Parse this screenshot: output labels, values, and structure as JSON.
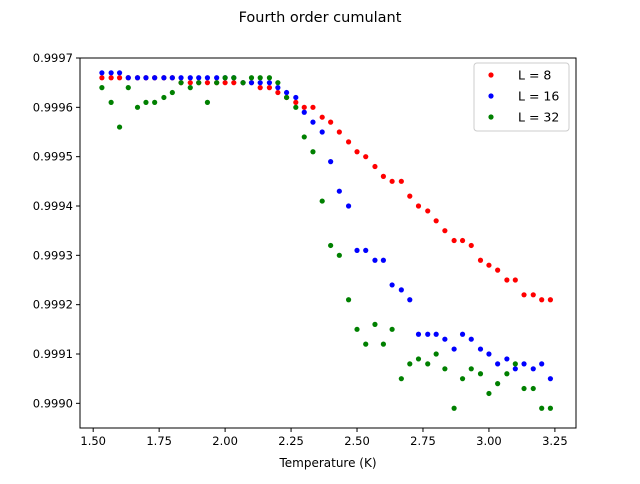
{
  "chart_data": {
    "type": "scatter",
    "title": "Fourth order cumulant",
    "xlabel": "Temperature (K)",
    "ylabel": "",
    "xlim": [
      1.45,
      3.33
    ],
    "ylim": [
      0.99895,
      0.9997
    ],
    "xticks": [
      1.5,
      1.75,
      2.0,
      2.25,
      2.5,
      2.75,
      3.0,
      3.25
    ],
    "xtick_labels": [
      "1.50",
      "1.75",
      "2.00",
      "2.25",
      "2.50",
      "2.75",
      "3.00",
      "3.25"
    ],
    "yticks": [
      0.999,
      0.9991,
      0.9992,
      0.9993,
      0.9994,
      0.9995,
      0.9996,
      0.9997
    ],
    "ytick_labels": [
      "0.9990",
      "0.9991",
      "0.9992",
      "0.9993",
      "0.9994",
      "0.9995",
      "0.9996",
      "0.9997"
    ],
    "grid": false,
    "legend_position": "top-right",
    "series": [
      {
        "name": "L = 8",
        "color": "#ff0000",
        "points": [
          [
            1.533,
            0.99966
          ],
          [
            1.568,
            0.99966
          ],
          [
            1.6,
            0.99966
          ],
          [
            1.633,
            0.99966
          ],
          [
            1.668,
            0.99966
          ],
          [
            1.7,
            0.99966
          ],
          [
            1.733,
            0.99966
          ],
          [
            1.768,
            0.99966
          ],
          [
            1.8,
            0.99966
          ],
          [
            1.833,
            0.99965
          ],
          [
            1.868,
            0.99965
          ],
          [
            1.9,
            0.99965
          ],
          [
            1.933,
            0.99965
          ],
          [
            1.968,
            0.99965
          ],
          [
            2.0,
            0.99965
          ],
          [
            2.033,
            0.99965
          ],
          [
            2.068,
            0.99965
          ],
          [
            2.1,
            0.99965
          ],
          [
            2.133,
            0.99964
          ],
          [
            2.168,
            0.99964
          ],
          [
            2.2,
            0.99963
          ],
          [
            2.233,
            0.99962
          ],
          [
            2.268,
            0.99961
          ],
          [
            2.3,
            0.9996
          ],
          [
            2.333,
            0.9996
          ],
          [
            2.368,
            0.99958
          ],
          [
            2.4,
            0.99957
          ],
          [
            2.433,
            0.99955
          ],
          [
            2.468,
            0.99953
          ],
          [
            2.5,
            0.99951
          ],
          [
            2.533,
            0.9995
          ],
          [
            2.568,
            0.99948
          ],
          [
            2.6,
            0.99946
          ],
          [
            2.633,
            0.99945
          ],
          [
            2.668,
            0.99945
          ],
          [
            2.7,
            0.99942
          ],
          [
            2.733,
            0.9994
          ],
          [
            2.768,
            0.99939
          ],
          [
            2.8,
            0.99937
          ],
          [
            2.833,
            0.99935
          ],
          [
            2.868,
            0.99933
          ],
          [
            2.9,
            0.99933
          ],
          [
            2.933,
            0.99932
          ],
          [
            2.968,
            0.99929
          ],
          [
            3.0,
            0.99928
          ],
          [
            3.033,
            0.99927
          ],
          [
            3.068,
            0.99925
          ],
          [
            3.1,
            0.99925
          ],
          [
            3.133,
            0.99922
          ],
          [
            3.168,
            0.99922
          ],
          [
            3.2,
            0.99921
          ],
          [
            3.233,
            0.99921
          ]
        ]
      },
      {
        "name": "L = 16",
        "color": "#0000ff",
        "points": [
          [
            1.533,
            0.99967
          ],
          [
            1.568,
            0.99967
          ],
          [
            1.6,
            0.99967
          ],
          [
            1.633,
            0.99966
          ],
          [
            1.668,
            0.99966
          ],
          [
            1.7,
            0.99966
          ],
          [
            1.733,
            0.99966
          ],
          [
            1.768,
            0.99966
          ],
          [
            1.8,
            0.99966
          ],
          [
            1.833,
            0.99966
          ],
          [
            1.868,
            0.99966
          ],
          [
            1.9,
            0.99966
          ],
          [
            1.933,
            0.99966
          ],
          [
            1.968,
            0.99966
          ],
          [
            2.0,
            0.99966
          ],
          [
            2.033,
            0.99966
          ],
          [
            2.068,
            0.99965
          ],
          [
            2.1,
            0.99965
          ],
          [
            2.133,
            0.99965
          ],
          [
            2.168,
            0.99965
          ],
          [
            2.2,
            0.99964
          ],
          [
            2.233,
            0.99963
          ],
          [
            2.268,
            0.99962
          ],
          [
            2.3,
            0.99959
          ],
          [
            2.333,
            0.99957
          ],
          [
            2.368,
            0.99955
          ],
          [
            2.4,
            0.99949
          ],
          [
            2.433,
            0.99943
          ],
          [
            2.468,
            0.9994
          ],
          [
            2.5,
            0.99931
          ],
          [
            2.533,
            0.99931
          ],
          [
            2.568,
            0.99929
          ],
          [
            2.6,
            0.99929
          ],
          [
            2.633,
            0.99924
          ],
          [
            2.668,
            0.99923
          ],
          [
            2.7,
            0.99921
          ],
          [
            2.733,
            0.99914
          ],
          [
            2.768,
            0.99914
          ],
          [
            2.8,
            0.99914
          ],
          [
            2.833,
            0.99913
          ],
          [
            2.868,
            0.99911
          ],
          [
            2.9,
            0.99914
          ],
          [
            2.933,
            0.99913
          ],
          [
            2.968,
            0.99911
          ],
          [
            3.0,
            0.9991
          ],
          [
            3.033,
            0.99908
          ],
          [
            3.068,
            0.99909
          ],
          [
            3.1,
            0.99907
          ],
          [
            3.133,
            0.99908
          ],
          [
            3.168,
            0.99907
          ],
          [
            3.2,
            0.99908
          ],
          [
            3.233,
            0.99905
          ]
        ]
      },
      {
        "name": "L = 32",
        "color": "#008000",
        "points": [
          [
            1.533,
            0.99964
          ],
          [
            1.568,
            0.99961
          ],
          [
            1.6,
            0.99956
          ],
          [
            1.633,
            0.99964
          ],
          [
            1.668,
            0.9996
          ],
          [
            1.7,
            0.99961
          ],
          [
            1.733,
            0.99961
          ],
          [
            1.768,
            0.99962
          ],
          [
            1.8,
            0.99963
          ],
          [
            1.833,
            0.99965
          ],
          [
            1.868,
            0.99964
          ],
          [
            1.9,
            0.99965
          ],
          [
            1.933,
            0.99961
          ],
          [
            1.968,
            0.99965
          ],
          [
            2.0,
            0.99966
          ],
          [
            2.033,
            0.99966
          ],
          [
            2.068,
            0.99965
          ],
          [
            2.1,
            0.99966
          ],
          [
            2.133,
            0.99966
          ],
          [
            2.168,
            0.99966
          ],
          [
            2.2,
            0.99965
          ],
          [
            2.233,
            0.99962
          ],
          [
            2.268,
            0.9996
          ],
          [
            2.3,
            0.99954
          ],
          [
            2.333,
            0.99951
          ],
          [
            2.368,
            0.99941
          ],
          [
            2.4,
            0.99932
          ],
          [
            2.433,
            0.9993
          ],
          [
            2.468,
            0.99921
          ],
          [
            2.5,
            0.99915
          ],
          [
            2.533,
            0.99912
          ],
          [
            2.568,
            0.99916
          ],
          [
            2.6,
            0.99912
          ],
          [
            2.633,
            0.99915
          ],
          [
            2.668,
            0.99905
          ],
          [
            2.7,
            0.99908
          ],
          [
            2.733,
            0.99909
          ],
          [
            2.768,
            0.99908
          ],
          [
            2.8,
            0.9991
          ],
          [
            2.833,
            0.99907
          ],
          [
            2.868,
            0.99899
          ],
          [
            2.9,
            0.99905
          ],
          [
            2.933,
            0.99907
          ],
          [
            2.968,
            0.99906
          ],
          [
            3.0,
            0.99902
          ],
          [
            3.033,
            0.99904
          ],
          [
            3.068,
            0.99906
          ],
          [
            3.1,
            0.99908
          ],
          [
            3.133,
            0.99903
          ],
          [
            3.168,
            0.99903
          ],
          [
            3.2,
            0.99899
          ],
          [
            3.233,
            0.99899
          ]
        ]
      }
    ]
  }
}
